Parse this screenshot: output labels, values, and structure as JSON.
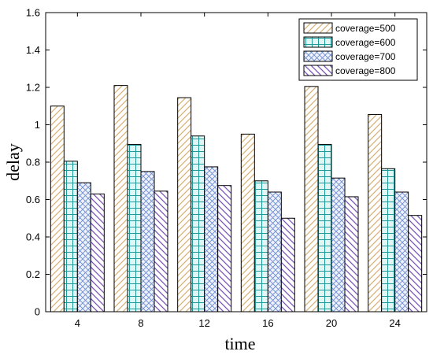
{
  "chart_data": {
    "type": "bar",
    "xlabel": "time",
    "ylabel": "delay",
    "categories": [
      "4",
      "8",
      "12",
      "16",
      "20",
      "24"
    ],
    "ylim": [
      0,
      1.6
    ],
    "yticks": [
      "0",
      "0.2",
      "0.4",
      "0.6",
      "0.8",
      "1",
      "1.2",
      "1.4",
      "1.6"
    ],
    "grid": false,
    "legend_position": "top-right",
    "series": [
      {
        "name": "coverage=500",
        "values": [
          1.1,
          1.21,
          1.145,
          0.95,
          1.205,
          1.055
        ],
        "color": "#D9B27A",
        "pattern": "diagonal-hatch"
      },
      {
        "name": "coverage=600",
        "values": [
          0.805,
          0.895,
          0.94,
          0.7,
          0.895,
          0.765
        ],
        "color": "#1E9A9A",
        "pattern": "grid"
      },
      {
        "name": "coverage=700",
        "values": [
          0.69,
          0.75,
          0.775,
          0.64,
          0.715,
          0.64
        ],
        "color": "#6E8CD0",
        "pattern": "crosshatch"
      },
      {
        "name": "coverage=800",
        "values": [
          0.63,
          0.645,
          0.675,
          0.5,
          0.615,
          0.515
        ],
        "color": "#7B55B5",
        "pattern": "diagonal-hatch-reverse"
      }
    ]
  }
}
